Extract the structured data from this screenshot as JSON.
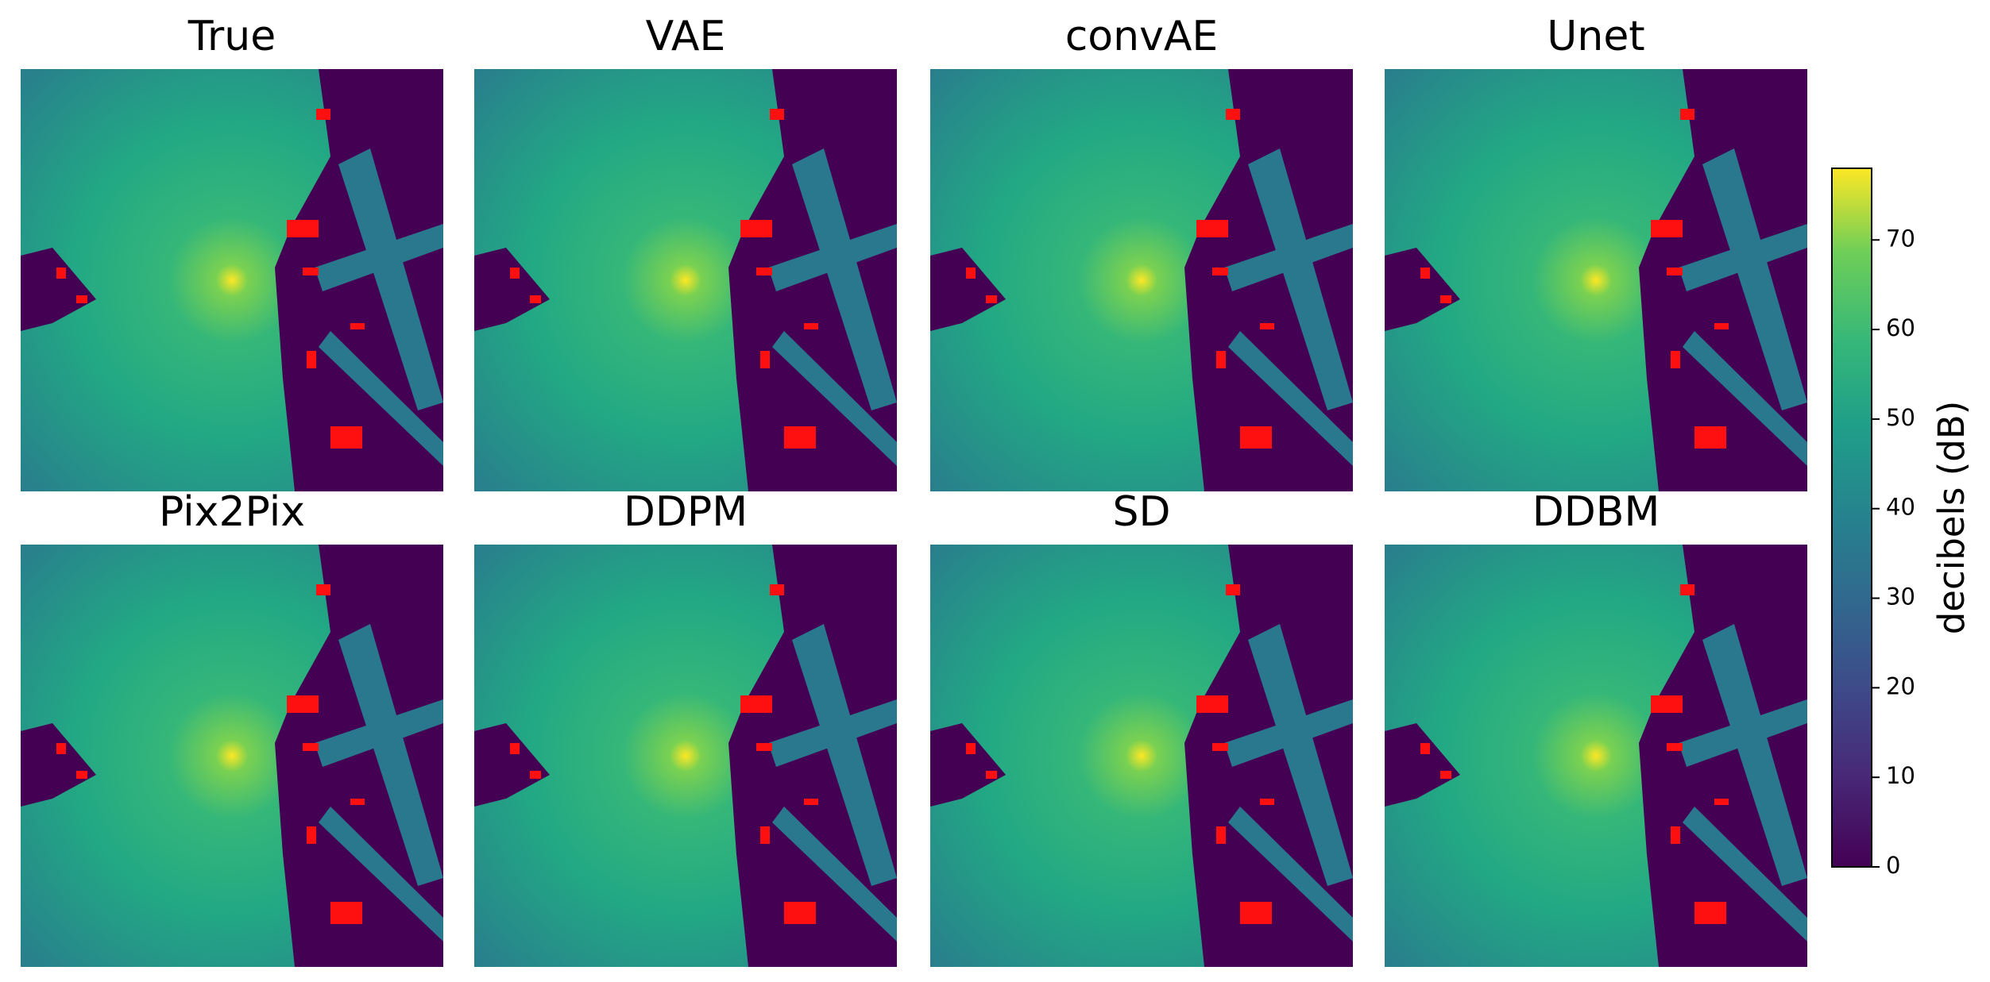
{
  "chart_data": {
    "type": "heatmap-grid",
    "panels": [
      "True",
      "VAE",
      "convAE",
      "Unet",
      "Pix2Pix",
      "DDPM",
      "SD",
      "DDBM"
    ],
    "colorbar": {
      "label": "decibels (dB)",
      "ylim": [
        0,
        78
      ],
      "yticks": [
        0,
        10,
        20,
        30,
        40,
        50,
        60,
        70
      ]
    }
  }
}
